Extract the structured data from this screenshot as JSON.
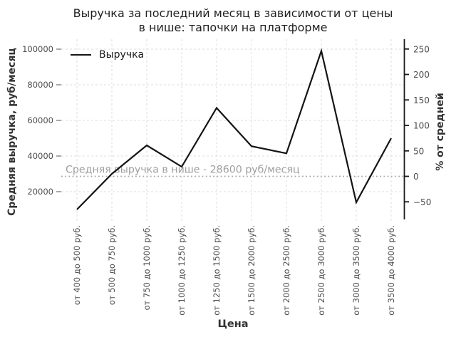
{
  "title": {
    "line1": "Выручка за последний месяц в зависимости от цены",
    "line2": "в нише: тапочки на платформе"
  },
  "legend": {
    "series_label": "Выручка"
  },
  "axes": {
    "x_label": "Цена",
    "y_left_label": "Средняя выручка, руб/месяц",
    "y_right_label": "% от средней"
  },
  "chart_data": {
    "type": "line",
    "title": "Выручка за последний месяц в зависимости от цены в нише: тапочки на платформе",
    "xlabel": "Цена",
    "ylabel_left": "Средняя выручка, руб/месяц",
    "ylabel_right": "% от средней",
    "categories": [
      "от 400 до 500 руб.",
      "от 500 до 750 руб.",
      "от 750 до 1000 руб.",
      "от 1000 до 1250 руб.",
      "от 1250 до 1500 руб.",
      "от 1500 до 2000 руб.",
      "от 2000 до 2500 руб.",
      "от 2500 до 3000 руб.",
      "от 3000 до 3500 руб.",
      "от 3500 до 4000 руб."
    ],
    "series": [
      {
        "name": "Выручка",
        "values": [
          10000,
          30000,
          46000,
          34000,
          67000,
          45500,
          41500,
          99000,
          14000,
          50000
        ]
      }
    ],
    "y_left_ticks": [
      20000,
      40000,
      60000,
      80000,
      100000
    ],
    "y_left_tick_labels": [
      "20000",
      "40000",
      "60000",
      "80000",
      "100000"
    ],
    "y_right_ticks": [
      -50,
      0,
      50,
      100,
      150,
      200,
      250
    ],
    "y_right_tick_labels": [
      "−50",
      "0",
      "50",
      "100",
      "150",
      "200",
      "250"
    ],
    "average": {
      "value": 28600,
      "label": "Средняя выручка в нише - 28600 руб/месяц"
    },
    "grid": true,
    "legend_position": "upper left"
  },
  "colors": {
    "line": "#141414",
    "grid": "#dcdcdc",
    "average_line": "#a6a6a6",
    "annotation_text": "#9e9e9e",
    "tick_label": "#4d4d4d",
    "spine": "#1a1a1a",
    "left_tick_mark": "#8c8c8c",
    "background": "#ffffff"
  }
}
